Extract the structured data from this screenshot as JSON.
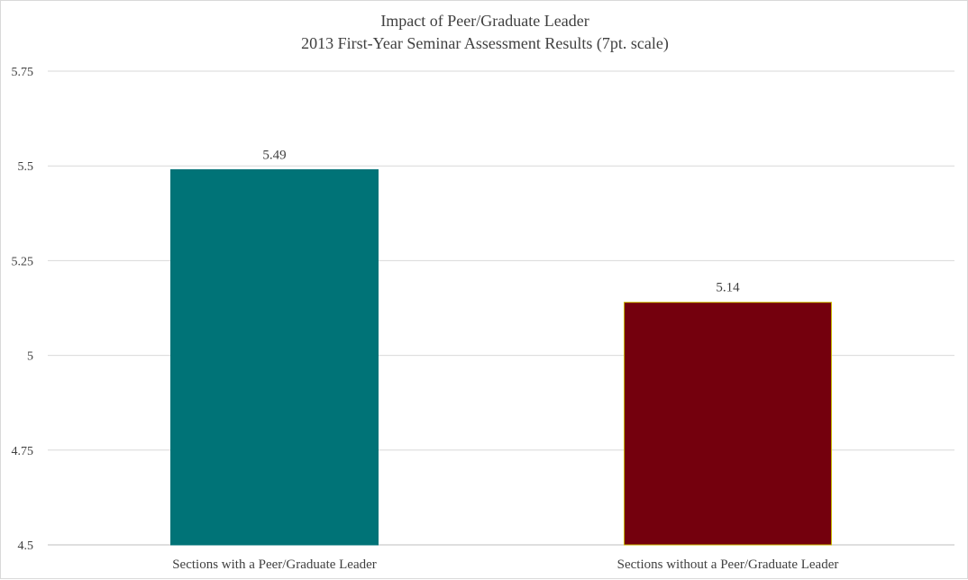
{
  "chart_data": {
    "type": "bar",
    "title": "Impact of Peer/Graduate Leader",
    "subtitle": "2013 First-Year Seminar Assessment Results (7pt. scale)",
    "xlabel": "",
    "ylabel": "",
    "categories": [
      "Sections with a Peer/Graduate Leader",
      "Sections without a Peer/Graduate Leader"
    ],
    "values": [
      5.49,
      5.14
    ],
    "data_labels": [
      "5.49",
      "5.14"
    ],
    "bar_colors": [
      "#007377",
      "#74000d"
    ],
    "bar_outline_colors": [
      "#007377",
      "#c8b400"
    ],
    "ylim": [
      4.5,
      5.75
    ],
    "yticks": [
      4.5,
      4.75,
      5,
      5.25,
      5.5,
      5.75
    ],
    "ytick_labels": [
      "4.5",
      "4.75",
      "5",
      "5.25",
      "5.5",
      "5.75"
    ],
    "grid": true,
    "legend": "none"
  }
}
